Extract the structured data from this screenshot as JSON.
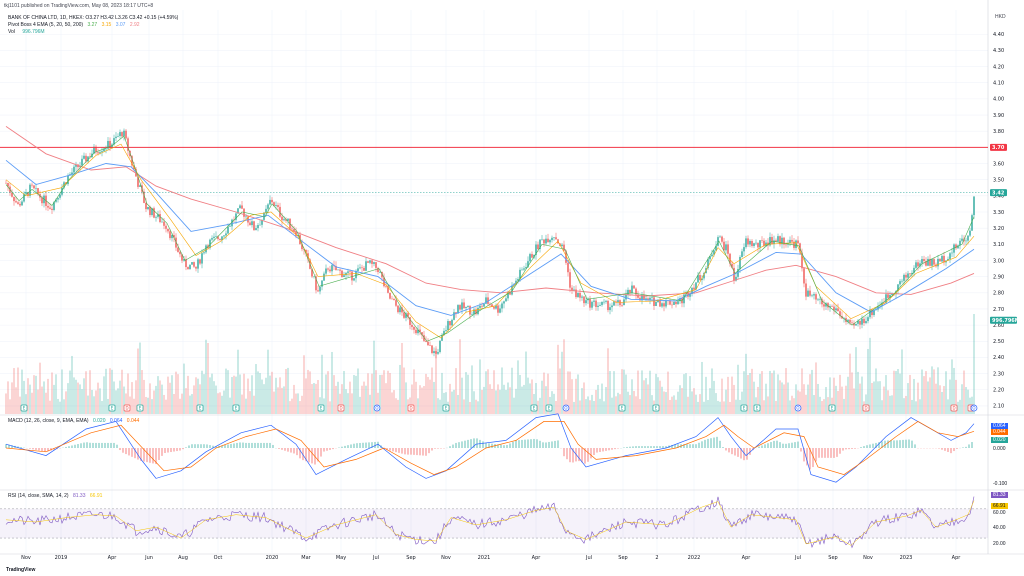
{
  "header": {
    "publisher": "tkj1101 published on TradingView.com, May 08, 2023 18:17 UTC+8",
    "symbol_line": "BANK OF CHINA LTD, 1D, HKEX: O3.27 H3.42 L3.26 C3.42 +0.15 (+4.59%)",
    "pivot_label": "Pivot Boss 4 EMA (5, 20, 50, 200)",
    "pivot_values": [
      "3.27",
      "3.15",
      "3.07",
      "2.92"
    ],
    "vol_label": "Vol",
    "vol_value": "996.796M"
  },
  "currency": "HKD",
  "macd_panel": {
    "label": "MACD (12, 26, close, 9, EMA, EMA)",
    "values": [
      "0.020",
      "0.064",
      "0.044"
    ],
    "tags": [
      "0.064",
      "0.044",
      "0.020"
    ],
    "ticks": [
      "0.000",
      "-0.100"
    ]
  },
  "rsi_panel": {
    "label": "RSI (14, close, SMA, 14, 2)",
    "values": [
      "81.33",
      "66.91"
    ],
    "tags": [
      "81.33",
      "66.91"
    ],
    "ticks": [
      "60.00",
      "40.00",
      "20.00"
    ]
  },
  "price_tags": {
    "hline": "3.70",
    "last": "3.42",
    "volume": "996.796M"
  },
  "events": [
    {
      "t": 18,
      "k": "E"
    },
    {
      "t": 106,
      "k": "E"
    },
    {
      "t": 121,
      "k": "D"
    },
    {
      "t": 134,
      "k": "E"
    },
    {
      "t": 194,
      "k": "E"
    },
    {
      "t": 230,
      "k": "E"
    },
    {
      "t": 315,
      "k": "E"
    },
    {
      "t": 335,
      "k": "D"
    },
    {
      "t": 371,
      "k": "O"
    },
    {
      "t": 405,
      "k": "D"
    },
    {
      "t": 440,
      "k": "E"
    },
    {
      "t": 528,
      "k": "E"
    },
    {
      "t": 543,
      "k": "E"
    },
    {
      "t": 560,
      "k": "O"
    },
    {
      "t": 616,
      "k": "E"
    },
    {
      "t": 650,
      "k": "E"
    },
    {
      "t": 738,
      "k": "E"
    },
    {
      "t": 751,
      "k": "E"
    },
    {
      "t": 792,
      "k": "O"
    },
    {
      "t": 826,
      "k": "E"
    },
    {
      "t": 860,
      "k": "D"
    },
    {
      "t": 948,
      "k": "D"
    },
    {
      "t": 965,
      "k": "D"
    },
    {
      "t": 968,
      "k": "O"
    }
  ],
  "colors": {
    "up": "#26a69a",
    "down": "#ef5350",
    "hline": "#f23645",
    "ema5": "#4caf50",
    "ema20": "#f7a600",
    "ema50": "#5b9cf6",
    "ema200": "#f07f84",
    "macd": "#2962ff",
    "signal": "#ff6d00",
    "rsi": "#7e57c2",
    "rsi_ma": "#f7c600"
  },
  "footer": "TradingView",
  "chart_data": {
    "type": "candlestick",
    "title": "BANK OF CHINA LTD, 1D, HKEX",
    "ylabel": "HKD",
    "ylim": [
      2.05,
      4.55
    ],
    "y_ticks": [
      "4.40",
      "4.30",
      "4.20",
      "4.10",
      "4.00",
      "3.90",
      "3.80",
      "3.70",
      "3.60",
      "3.50",
      "3.40",
      "3.30",
      "3.20",
      "3.10",
      "3.00",
      "2.90",
      "2.80",
      "2.70",
      "2.60",
      "2.50",
      "2.40",
      "2.30",
      "2.20",
      "2.10"
    ],
    "x_ticks": [
      {
        "t": 20,
        "label": "Nov"
      },
      {
        "t": 55,
        "label": "2019"
      },
      {
        "t": 106,
        "label": "Apr"
      },
      {
        "t": 143,
        "label": "Jun"
      },
      {
        "t": 177,
        "label": "Aug"
      },
      {
        "t": 212,
        "label": "Oct"
      },
      {
        "t": 266,
        "label": "2020"
      },
      {
        "t": 300,
        "label": "Mar"
      },
      {
        "t": 335,
        "label": "May"
      },
      {
        "t": 370,
        "label": "Jul"
      },
      {
        "t": 405,
        "label": "Sep"
      },
      {
        "t": 440,
        "label": "Nov"
      },
      {
        "t": 478,
        "label": "2021"
      },
      {
        "t": 530,
        "label": "Apr"
      },
      {
        "t": 583,
        "label": "Jul"
      },
      {
        "t": 617,
        "label": "Sep"
      },
      {
        "t": 651,
        "label": "2"
      },
      {
        "t": 688,
        "label": "2022"
      },
      {
        "t": 740,
        "label": "Apr"
      },
      {
        "t": 792,
        "label": "Jul"
      },
      {
        "t": 827,
        "label": "Sep"
      },
      {
        "t": 862,
        "label": "Nov"
      },
      {
        "t": 900,
        "label": "2023"
      },
      {
        "t": 950,
        "label": "Apr"
      }
    ],
    "price_path": [
      [
        0,
        3.48
      ],
      [
        12,
        3.34
      ],
      [
        25,
        3.45
      ],
      [
        45,
        3.33
      ],
      [
        62,
        3.52
      ],
      [
        88,
        3.68
      ],
      [
        105,
        3.72
      ],
      [
        117,
        3.8
      ],
      [
        125,
        3.62
      ],
      [
        132,
        3.48
      ],
      [
        140,
        3.33
      ],
      [
        160,
        3.22
      ],
      [
        178,
        2.98
      ],
      [
        190,
        2.95
      ],
      [
        200,
        3.1
      ],
      [
        215,
        3.15
      ],
      [
        235,
        3.32
      ],
      [
        248,
        3.2
      ],
      [
        258,
        3.27
      ],
      [
        265,
        3.38
      ],
      [
        275,
        3.28
      ],
      [
        290,
        3.18
      ],
      [
        300,
        3.02
      ],
      [
        312,
        2.8
      ],
      [
        322,
        2.96
      ],
      [
        345,
        2.9
      ],
      [
        362,
        2.98
      ],
      [
        372,
        2.95
      ],
      [
        382,
        2.78
      ],
      [
        395,
        2.68
      ],
      [
        410,
        2.58
      ],
      [
        420,
        2.48
      ],
      [
        430,
        2.42
      ],
      [
        440,
        2.58
      ],
      [
        452,
        2.72
      ],
      [
        470,
        2.68
      ],
      [
        480,
        2.75
      ],
      [
        492,
        2.7
      ],
      [
        505,
        2.82
      ],
      [
        520,
        2.98
      ],
      [
        535,
        3.12
      ],
      [
        548,
        3.16
      ],
      [
        558,
        3.06
      ],
      [
        565,
        2.82
      ],
      [
        580,
        2.74
      ],
      [
        600,
        2.72
      ],
      [
        615,
        2.73
      ],
      [
        625,
        2.82
      ],
      [
        640,
        2.75
      ],
      [
        660,
        2.74
      ],
      [
        675,
        2.75
      ],
      [
        688,
        2.85
      ],
      [
        700,
        2.95
      ],
      [
        712,
        3.15
      ],
      [
        722,
        3.05
      ],
      [
        728,
        2.88
      ],
      [
        740,
        3.12
      ],
      [
        752,
        3.09
      ],
      [
        765,
        3.13
      ],
      [
        780,
        3.12
      ],
      [
        792,
        3.1
      ],
      [
        800,
        2.8
      ],
      [
        815,
        2.73
      ],
      [
        830,
        2.7
      ],
      [
        845,
        2.58
      ],
      [
        855,
        2.62
      ],
      [
        872,
        2.72
      ],
      [
        885,
        2.8
      ],
      [
        900,
        2.9
      ],
      [
        915,
        3.0
      ],
      [
        930,
        2.98
      ],
      [
        945,
        3.05
      ],
      [
        955,
        3.12
      ],
      [
        962,
        3.15
      ],
      [
        966,
        3.27
      ],
      [
        968,
        3.42
      ]
    ],
    "ema200_path": [
      [
        0,
        3.83
      ],
      [
        40,
        3.66
      ],
      [
        85,
        3.56
      ],
      [
        120,
        3.58
      ],
      [
        150,
        3.46
      ],
      [
        185,
        3.38
      ],
      [
        230,
        3.3
      ],
      [
        280,
        3.2
      ],
      [
        330,
        3.08
      ],
      [
        380,
        2.98
      ],
      [
        420,
        2.86
      ],
      [
        455,
        2.82
      ],
      [
        495,
        2.8
      ],
      [
        540,
        2.83
      ],
      [
        590,
        2.8
      ],
      [
        640,
        2.78
      ],
      [
        690,
        2.8
      ],
      [
        725,
        2.87
      ],
      [
        760,
        2.94
      ],
      [
        790,
        2.97
      ],
      [
        830,
        2.9
      ],
      [
        870,
        2.8
      ],
      [
        905,
        2.79
      ],
      [
        945,
        2.86
      ],
      [
        968,
        2.92
      ]
    ],
    "ema50_path": [
      [
        0,
        3.62
      ],
      [
        30,
        3.47
      ],
      [
        65,
        3.53
      ],
      [
        100,
        3.6
      ],
      [
        125,
        3.58
      ],
      [
        150,
        3.42
      ],
      [
        185,
        3.18
      ],
      [
        220,
        3.22
      ],
      [
        262,
        3.28
      ],
      [
        300,
        3.1
      ],
      [
        330,
        2.96
      ],
      [
        372,
        2.9
      ],
      [
        410,
        2.72
      ],
      [
        445,
        2.66
      ],
      [
        480,
        2.74
      ],
      [
        520,
        2.9
      ],
      [
        555,
        3.04
      ],
      [
        585,
        2.84
      ],
      [
        625,
        2.76
      ],
      [
        670,
        2.75
      ],
      [
        700,
        2.84
      ],
      [
        730,
        2.92
      ],
      [
        770,
        3.05
      ],
      [
        795,
        3.04
      ],
      [
        830,
        2.8
      ],
      [
        865,
        2.68
      ],
      [
        900,
        2.8
      ],
      [
        940,
        2.95
      ],
      [
        968,
        3.07
      ]
    ],
    "ema20_path": [
      [
        0,
        3.5
      ],
      [
        20,
        3.4
      ],
      [
        55,
        3.45
      ],
      [
        90,
        3.65
      ],
      [
        115,
        3.72
      ],
      [
        135,
        3.5
      ],
      [
        165,
        3.25
      ],
      [
        190,
        3.03
      ],
      [
        215,
        3.12
      ],
      [
        245,
        3.28
      ],
      [
        265,
        3.3
      ],
      [
        292,
        3.15
      ],
      [
        312,
        2.9
      ],
      [
        350,
        2.92
      ],
      [
        380,
        2.85
      ],
      [
        410,
        2.62
      ],
      [
        435,
        2.52
      ],
      [
        460,
        2.68
      ],
      [
        490,
        2.72
      ],
      [
        525,
        2.96
      ],
      [
        552,
        3.12
      ],
      [
        575,
        2.86
      ],
      [
        610,
        2.74
      ],
      [
        650,
        2.75
      ],
      [
        690,
        2.82
      ],
      [
        712,
        3.08
      ],
      [
        728,
        2.98
      ],
      [
        760,
        3.1
      ],
      [
        790,
        3.11
      ],
      [
        810,
        2.84
      ],
      [
        845,
        2.64
      ],
      [
        880,
        2.74
      ],
      [
        910,
        2.92
      ],
      [
        950,
        3.02
      ],
      [
        968,
        3.15
      ]
    ],
    "ema5_path": [
      [
        0,
        3.47
      ],
      [
        13,
        3.37
      ],
      [
        26,
        3.44
      ],
      [
        46,
        3.34
      ],
      [
        63,
        3.5
      ],
      [
        89,
        3.67
      ],
      [
        106,
        3.71
      ],
      [
        118,
        3.77
      ],
      [
        126,
        3.63
      ],
      [
        141,
        3.35
      ],
      [
        161,
        3.23
      ],
      [
        179,
        3.0
      ],
      [
        201,
        3.08
      ],
      [
        236,
        3.3
      ],
      [
        259,
        3.27
      ],
      [
        266,
        3.35
      ],
      [
        291,
        3.18
      ],
      [
        313,
        2.84
      ],
      [
        346,
        2.9
      ],
      [
        373,
        2.95
      ],
      [
        396,
        2.7
      ],
      [
        421,
        2.5
      ],
      [
        441,
        2.55
      ],
      [
        471,
        2.68
      ],
      [
        506,
        2.81
      ],
      [
        536,
        3.1
      ],
      [
        559,
        3.07
      ],
      [
        581,
        2.76
      ],
      [
        626,
        2.8
      ],
      [
        676,
        2.75
      ],
      [
        713,
        3.12
      ],
      [
        729,
        2.92
      ],
      [
        766,
        3.12
      ],
      [
        793,
        3.09
      ],
      [
        816,
        2.75
      ],
      [
        846,
        2.6
      ],
      [
        886,
        2.78
      ],
      [
        916,
        2.98
      ],
      [
        956,
        3.1
      ],
      [
        968,
        3.27
      ]
    ],
    "hline": 3.7,
    "last_close": 3.42,
    "ohlc_last": {
      "open": 3.27,
      "high": 3.42,
      "low": 3.26,
      "close": 3.42,
      "change": 0.15,
      "change_pct": 4.59
    },
    "volume_last_m": 996.796,
    "rsi_path": [
      [
        0,
        55
      ],
      [
        30,
        52
      ],
      [
        60,
        58
      ],
      [
        90,
        62
      ],
      [
        110,
        60
      ],
      [
        130,
        40
      ],
      [
        150,
        45
      ],
      [
        175,
        30
      ],
      [
        200,
        55
      ],
      [
        230,
        62
      ],
      [
        260,
        58
      ],
      [
        300,
        30
      ],
      [
        330,
        48
      ],
      [
        370,
        62
      ],
      [
        390,
        35
      ],
      [
        410,
        28
      ],
      [
        430,
        26
      ],
      [
        445,
        58
      ],
      [
        470,
        48
      ],
      [
        500,
        55
      ],
      [
        530,
        68
      ],
      [
        548,
        72
      ],
      [
        560,
        40
      ],
      [
        580,
        28
      ],
      [
        620,
        52
      ],
      [
        660,
        48
      ],
      [
        695,
        72
      ],
      [
        712,
        80
      ],
      [
        725,
        45
      ],
      [
        745,
        62
      ],
      [
        790,
        55
      ],
      [
        800,
        22
      ],
      [
        830,
        32
      ],
      [
        845,
        20
      ],
      [
        870,
        52
      ],
      [
        900,
        60
      ],
      [
        915,
        68
      ],
      [
        930,
        45
      ],
      [
        950,
        55
      ],
      [
        962,
        62
      ],
      [
        968,
        81.33
      ]
    ],
    "macd_path": [
      [
        0,
        0.01
      ],
      [
        40,
        -0.02
      ],
      [
        80,
        0.05
      ],
      [
        110,
        0.07
      ],
      [
        135,
        -0.03
      ],
      [
        150,
        -0.08
      ],
      [
        175,
        -0.06
      ],
      [
        200,
        -0.01
      ],
      [
        235,
        0.04
      ],
      [
        265,
        0.06
      ],
      [
        290,
        0.01
      ],
      [
        310,
        -0.07
      ],
      [
        340,
        -0.03
      ],
      [
        372,
        0.01
      ],
      [
        400,
        -0.05
      ],
      [
        420,
        -0.08
      ],
      [
        440,
        -0.06
      ],
      [
        470,
        0.01
      ],
      [
        500,
        0.02
      ],
      [
        530,
        0.08
      ],
      [
        552,
        0.09
      ],
      [
        565,
        0.0
      ],
      [
        580,
        -0.05
      ],
      [
        620,
        -0.02
      ],
      [
        660,
        0.0
      ],
      [
        690,
        0.03
      ],
      [
        712,
        0.08
      ],
      [
        725,
        0.03
      ],
      [
        740,
        -0.02
      ],
      [
        770,
        0.05
      ],
      [
        792,
        0.05
      ],
      [
        805,
        -0.07
      ],
      [
        830,
        -0.09
      ],
      [
        850,
        -0.05
      ],
      [
        880,
        0.03
      ],
      [
        905,
        0.08
      ],
      [
        925,
        0.05
      ],
      [
        945,
        0.02
      ],
      [
        960,
        0.04
      ],
      [
        968,
        0.064
      ]
    ],
    "signal_path": [
      [
        0,
        0.0
      ],
      [
        40,
        -0.01
      ],
      [
        85,
        0.04
      ],
      [
        115,
        0.06
      ],
      [
        140,
        -0.01
      ],
      [
        158,
        -0.06
      ],
      [
        185,
        -0.05
      ],
      [
        210,
        0.0
      ],
      [
        240,
        0.03
      ],
      [
        270,
        0.05
      ],
      [
        295,
        0.02
      ],
      [
        318,
        -0.05
      ],
      [
        350,
        -0.03
      ],
      [
        378,
        0.0
      ],
      [
        405,
        -0.04
      ],
      [
        428,
        -0.07
      ],
      [
        450,
        -0.05
      ],
      [
        480,
        0.0
      ],
      [
        510,
        0.02
      ],
      [
        538,
        0.07
      ],
      [
        558,
        0.07
      ],
      [
        572,
        0.01
      ],
      [
        590,
        -0.03
      ],
      [
        630,
        -0.02
      ],
      [
        670,
        0.0
      ],
      [
        700,
        0.03
      ],
      [
        718,
        0.06
      ],
      [
        732,
        0.03
      ],
      [
        748,
        0.0
      ],
      [
        778,
        0.04
      ],
      [
        798,
        0.03
      ],
      [
        812,
        -0.05
      ],
      [
        838,
        -0.07
      ],
      [
        860,
        -0.03
      ],
      [
        890,
        0.03
      ],
      [
        912,
        0.07
      ],
      [
        932,
        0.04
      ],
      [
        952,
        0.03
      ],
      [
        968,
        0.044
      ]
    ]
  }
}
